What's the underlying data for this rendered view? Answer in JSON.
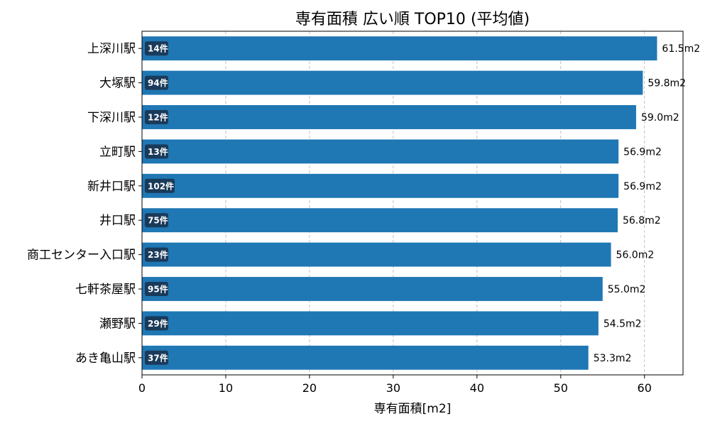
{
  "chart_data": {
    "type": "bar",
    "orientation": "horizontal",
    "title": "専有面積 広い順 TOP10 (平均値)",
    "xlabel": "専有面積[m2]",
    "ylabel": "",
    "xlim": [
      0,
      64.6
    ],
    "xticks": [
      "0",
      "10",
      "20",
      "30",
      "40",
      "50",
      "60"
    ],
    "grid": "x-dashed",
    "bar_color": "#1f77b4",
    "badge_color": "#1a3a5a",
    "categories": [
      "上深川駅",
      "大塚駅",
      "下深川駅",
      "立町駅",
      "新井口駅",
      "井口駅",
      "商工センター入口駅",
      "七軒茶屋駅",
      "瀬野駅",
      "あき亀山駅"
    ],
    "values": [
      61.5,
      59.8,
      59.0,
      56.9,
      56.9,
      56.8,
      56.0,
      55.0,
      54.5,
      53.3
    ],
    "value_labels": [
      "61.5m2",
      "59.8m2",
      "59.0m2",
      "56.9m2",
      "56.9m2",
      "56.8m2",
      "56.0m2",
      "55.0m2",
      "54.5m2",
      "53.3m2"
    ],
    "count_labels": [
      "14件",
      "94件",
      "12件",
      "13件",
      "102件",
      "75件",
      "23件",
      "95件",
      "29件",
      "37件"
    ]
  }
}
